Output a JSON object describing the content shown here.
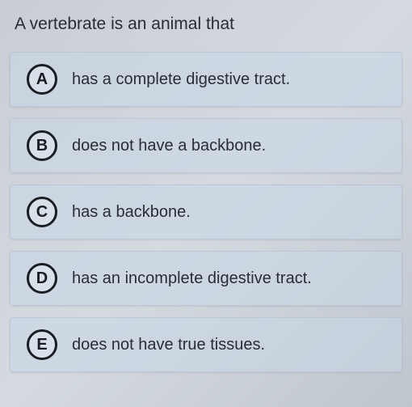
{
  "question": {
    "prompt": "A vertebrate is an animal that",
    "prompt_color": "#2a2d33",
    "prompt_fontsize": 21
  },
  "choices": [
    {
      "letter": "A",
      "text": "has a complete digestive tract."
    },
    {
      "letter": "B",
      "text": "does not have a backbone."
    },
    {
      "letter": "C",
      "text": "has a backbone."
    },
    {
      "letter": "D",
      "text": "has an incomplete digestive tract."
    },
    {
      "letter": "E",
      "text": "does not have true tissues."
    }
  ],
  "style": {
    "background_gradient": [
      "#c8cdd4",
      "#d5dae1",
      "#c0c6ce"
    ],
    "choice_background": "rgba(200,215,230,0.55)",
    "letter_border_color": "#1a1d22",
    "letter_border_width": 3,
    "letter_diameter": 38,
    "choice_text_color": "#2a2d33",
    "choice_text_fontsize": 20,
    "choice_gap": 14
  }
}
